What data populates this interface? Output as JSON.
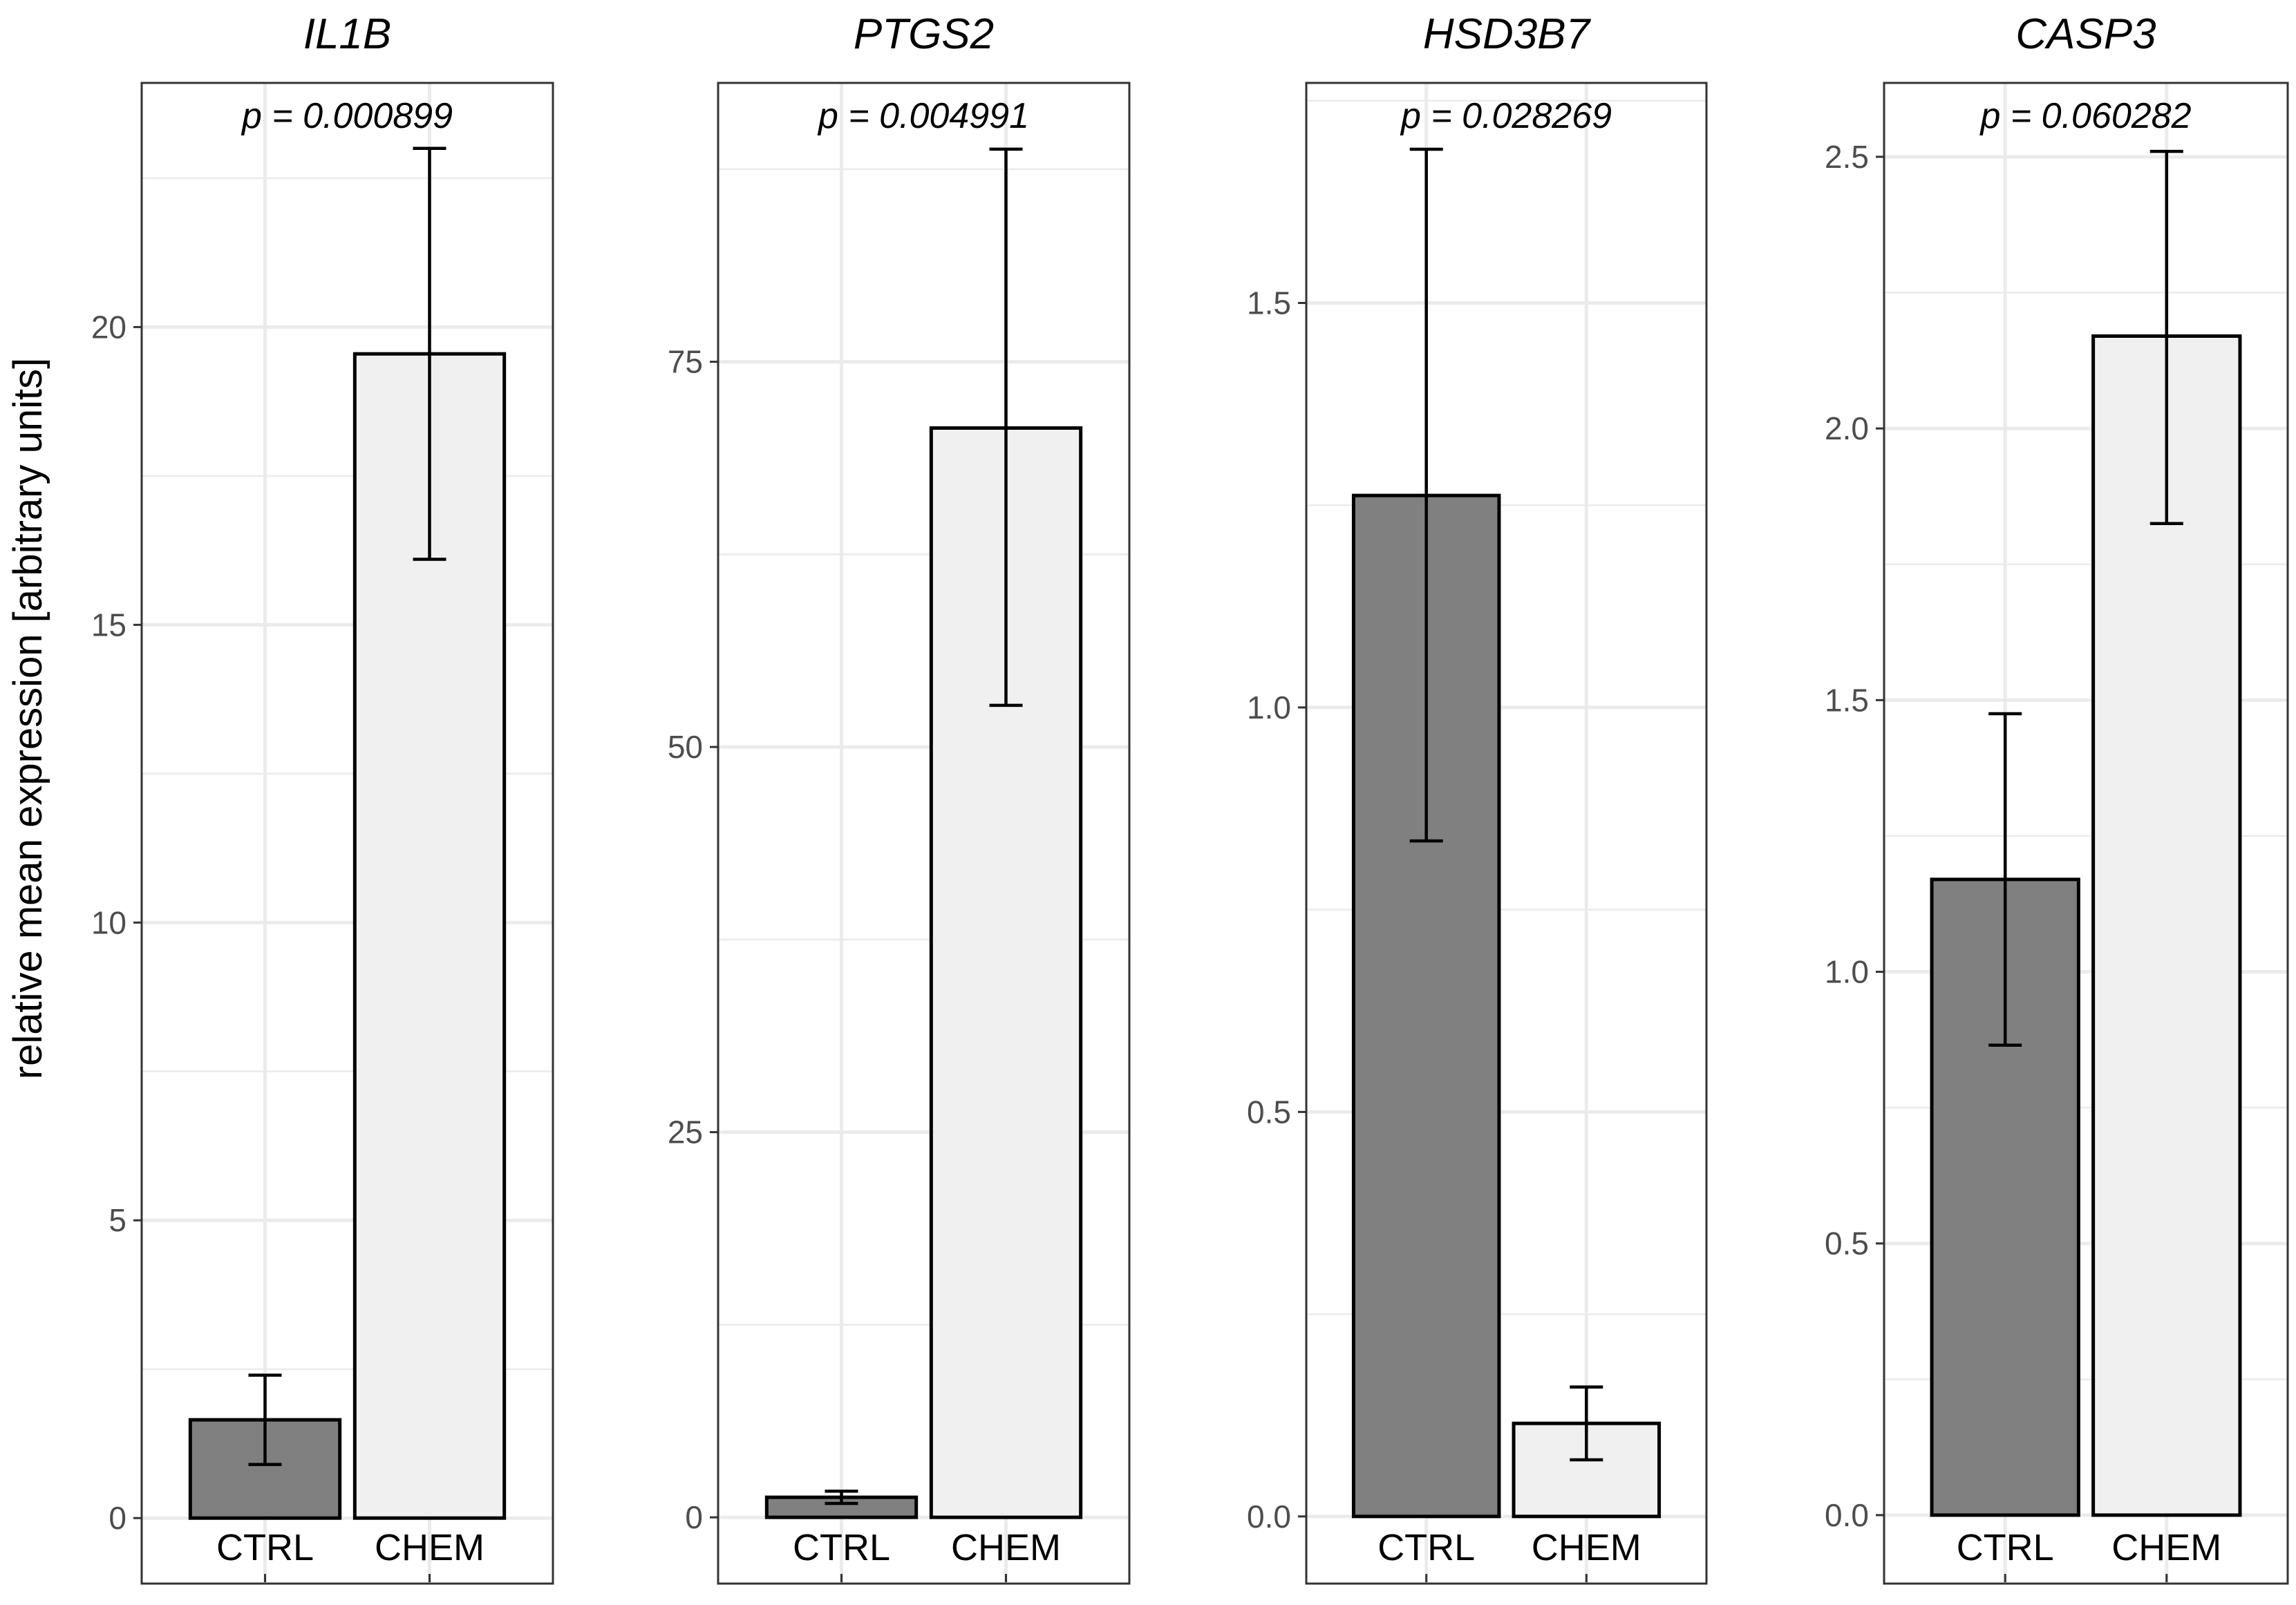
{
  "chart_data": {
    "type": "bar",
    "ylabel": "relative mean expression [arbitrary units]",
    "colors": {
      "CTRL": "#808080",
      "CHEM": "#f0f0f0",
      "outline": "#000000",
      "grid": "#ebebeb",
      "panel_border": "#333333"
    },
    "panels": [
      {
        "title": "IL1B",
        "p_value": "p = 0.000899",
        "categories": [
          "CTRL",
          "CHEM"
        ],
        "values": [
          1.65,
          19.55
        ],
        "error_low": [
          0.9,
          16.1
        ],
        "error_high": [
          2.4,
          23.0
        ],
        "ylim": [
          -1.1,
          24.1
        ],
        "yticks": [
          0,
          5,
          10,
          15,
          20
        ],
        "ytick_labels": [
          "0",
          "5",
          "10",
          "15",
          "20"
        ]
      },
      {
        "title": "PTGS2",
        "p_value": "p = 0.004991",
        "categories": [
          "CTRL",
          "CHEM"
        ],
        "values": [
          1.3,
          70.7
        ],
        "error_low": [
          0.9,
          52.7
        ],
        "error_high": [
          1.7,
          88.8
        ],
        "ylim": [
          -4.3,
          93.1
        ],
        "yticks": [
          0,
          25,
          50,
          75
        ],
        "ytick_labels": [
          "0",
          "25",
          "50",
          "75"
        ]
      },
      {
        "title": "HSD3B7",
        "p_value": "p = 0.028269",
        "categories": [
          "CTRL",
          "CHEM"
        ],
        "values": [
          1.262,
          0.115
        ],
        "error_low": [
          0.835,
          0.07
        ],
        "error_high": [
          1.69,
          0.16
        ],
        "ylim": [
          -0.083,
          1.772
        ],
        "yticks": [
          0.0,
          0.5,
          1.0,
          1.5
        ],
        "ytick_labels": [
          "0.0",
          "0.5",
          "1.0",
          "1.5"
        ]
      },
      {
        "title": "CASP3",
        "p_value": "p = 0.060282",
        "categories": [
          "CTRL",
          "CHEM"
        ],
        "values": [
          1.17,
          2.17
        ],
        "error_low": [
          0.865,
          1.825
        ],
        "error_high": [
          1.475,
          2.51
        ],
        "ylim": [
          -0.126,
          2.636
        ],
        "yticks": [
          0.0,
          0.5,
          1.0,
          1.5,
          2.0,
          2.5
        ],
        "ytick_labels": [
          "0.0",
          "0.5",
          "1.0",
          "1.5",
          "2.0",
          "2.5"
        ]
      }
    ]
  }
}
